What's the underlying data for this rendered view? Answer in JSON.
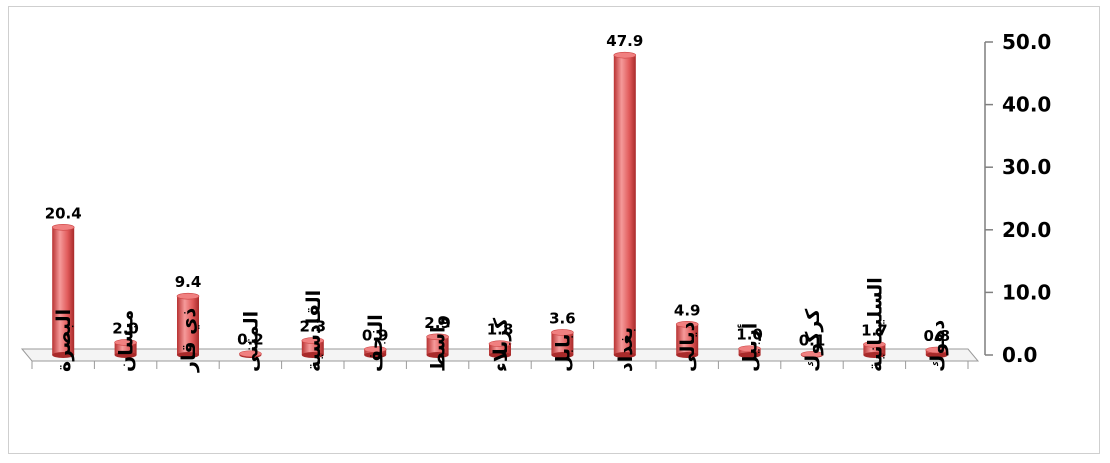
{
  "chart_data": {
    "type": "bar",
    "categories": [
      "البصرة",
      "ميسان",
      "ذي قار",
      "المثنى",
      "القادسية",
      "النجف",
      "واسط",
      "كربلاء",
      "بابل",
      "بغداد",
      "ديالى",
      "أربيل",
      "كركوك",
      "السليمانية",
      "دهوك"
    ],
    "values": [
      20.4,
      2.0,
      9.4,
      0.2,
      2.3,
      0.9,
      2.9,
      1.8,
      3.6,
      47.9,
      4.9,
      1.0,
      0.1,
      1.7,
      0.8
    ],
    "data_labels": [
      "20.4",
      "2.0",
      "9.4",
      "0.2",
      "2.3",
      "0.9",
      "2.9",
      "1.8",
      "3.6",
      "47.9",
      "4.9",
      "1.0",
      "0.1",
      "1.7",
      "0.8"
    ],
    "y_ticks": [
      "0.0",
      "10.0",
      "20.0",
      "30.0",
      "40.0",
      "50.0"
    ],
    "ylim": [
      0,
      50
    ],
    "y_axis_side": "right",
    "bar_color": "#e05a5a",
    "title": "",
    "xlabel": "",
    "ylabel": ""
  }
}
